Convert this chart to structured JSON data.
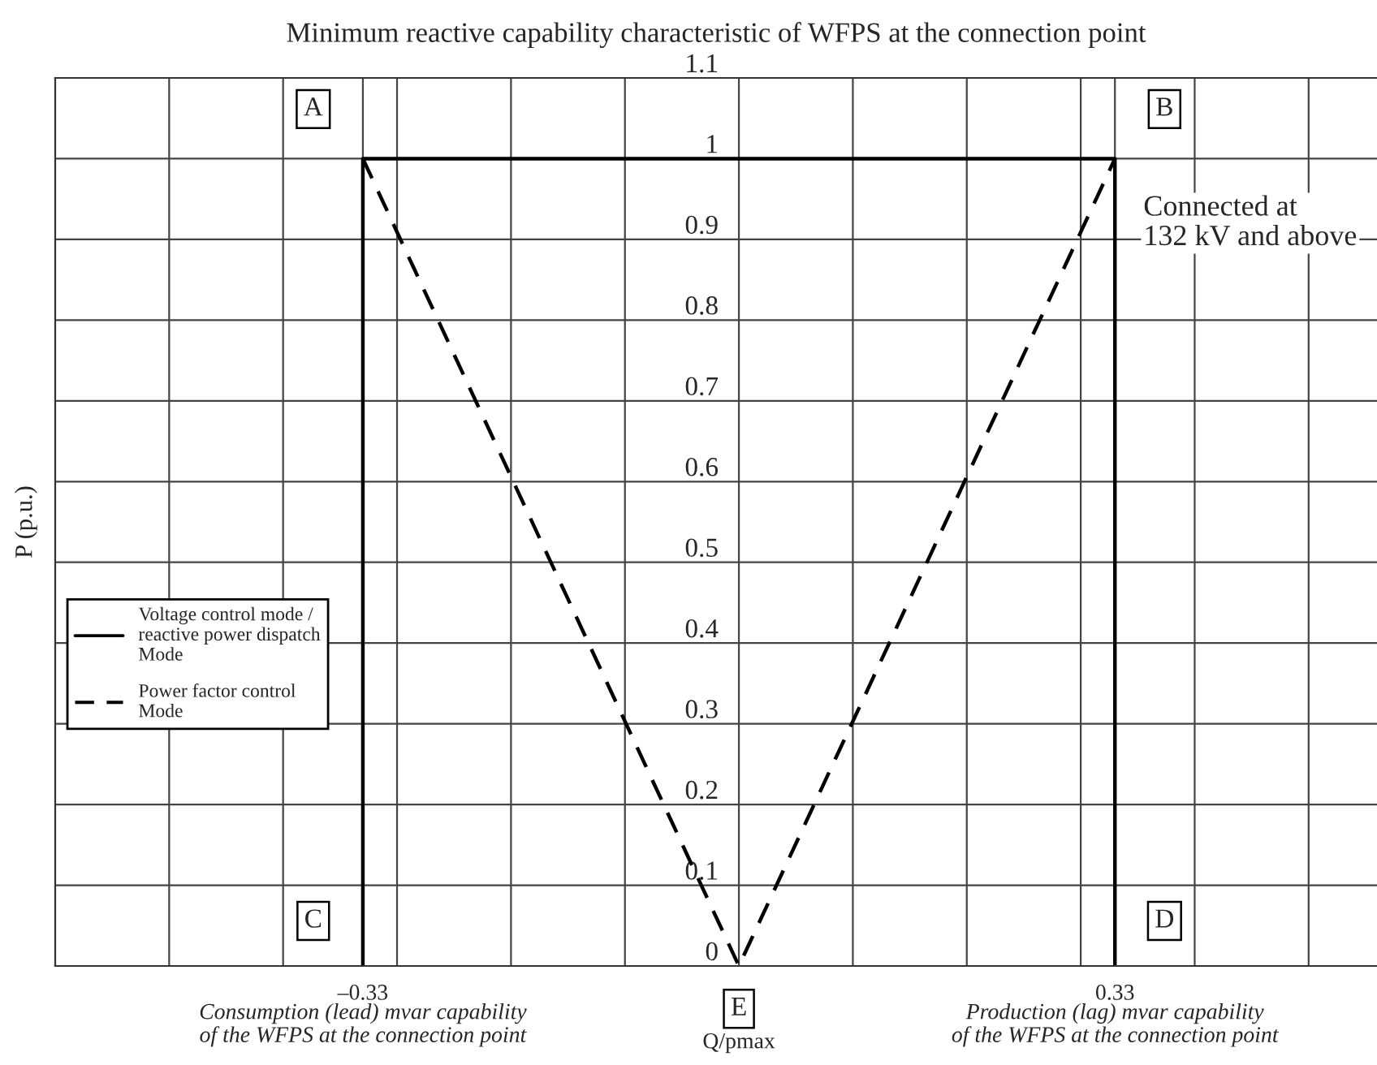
{
  "chart_data": {
    "type": "line",
    "title": "Minimum reactive capability characteristic of WFPS at the connection point",
    "xlabel": "Q/pmax",
    "ylabel": "P (p.u.)",
    "series": [
      {
        "name": "Voltage control mode / reactive power dispatch Mode",
        "color": "#000000",
        "line_style": "solid",
        "x": [
          -0.33,
          -0.33,
          0.33,
          0.33
        ],
        "values": [
          0,
          1,
          1,
          0
        ]
      },
      {
        "name": "Power factor control Mode",
        "color": "#000000",
        "line_style": "dashed",
        "x": [
          -0.33,
          0,
          0.33
        ],
        "values": [
          1,
          0,
          1
        ]
      }
    ],
    "xlim": [
      -0.6,
      0.56
    ],
    "xticks": [
      {
        "value": -0.5,
        "label": null
      },
      {
        "value": -0.4,
        "label": null
      },
      {
        "value": -0.33,
        "label": "–0.33"
      },
      {
        "value": -0.3,
        "label": null
      },
      {
        "value": -0.2,
        "label": null
      },
      {
        "value": -0.1,
        "label": null
      },
      {
        "value": 0,
        "label": null
      },
      {
        "value": 0.1,
        "label": null
      },
      {
        "value": 0.2,
        "label": null
      },
      {
        "value": 0.3,
        "label": null
      },
      {
        "value": 0.33,
        "label": "0.33"
      },
      {
        "value": 0.4,
        "label": null
      },
      {
        "value": 0.5,
        "label": null
      }
    ],
    "ylim": [
      0,
      1.1
    ],
    "yticks": [
      0,
      0.1,
      0.2,
      0.3,
      0.4,
      0.5,
      0.6,
      0.7,
      0.8,
      0.9,
      1,
      1.1
    ],
    "grid": true,
    "legend": "left",
    "marker": "none",
    "annotations": [
      {
        "text": "A",
        "x": -0.33,
        "y": 1
      },
      {
        "text": "B",
        "x": 0.33,
        "y": 1
      },
      {
        "text": "C",
        "x": -0.33,
        "y": 0
      },
      {
        "text": "D",
        "x": 0.33,
        "y": 0
      },
      {
        "text": "E",
        "x": 0,
        "y": 0
      },
      "Connected at\n132 kV and above",
      "Consumption (lead) mvar capability\nof the WFPS at the connection point",
      "Production (lag) mvar capability\nof the WFPS at the connection point"
    ]
  }
}
